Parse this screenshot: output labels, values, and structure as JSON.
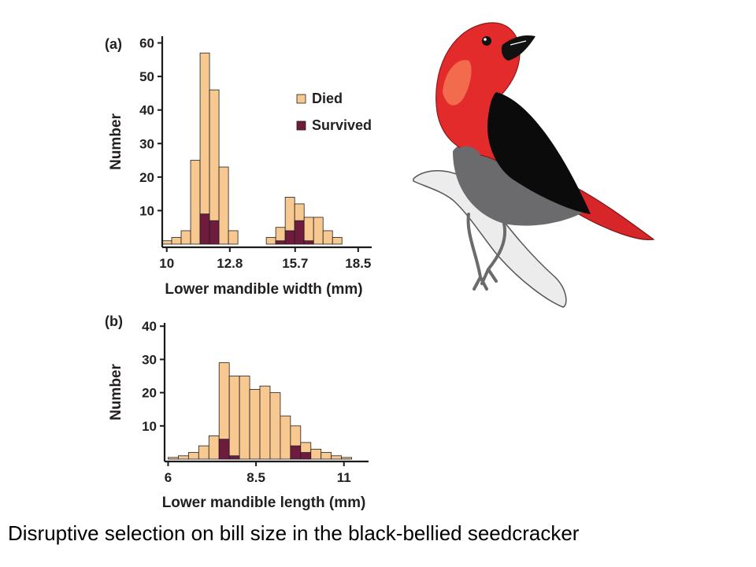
{
  "caption": "Disruptive selection on bill size in the black-bellied seedcracker",
  "colors": {
    "died": "#f7c990",
    "survived": "#6e1b3d",
    "axis": "#1a1a1a"
  },
  "legend": {
    "died": "Died",
    "survived": "Survived"
  },
  "bird": {
    "icon": "seedcracker-bird-illustration"
  },
  "chart_data": [
    {
      "type": "bar",
      "panel_label": "(a)",
      "ylabel": "Number",
      "xlabel": "Lower mandible width (mm)",
      "xticks": [
        10,
        12.8,
        15.7,
        18.5
      ],
      "xtick_labels": [
        "10",
        "12.8",
        "15.7",
        "18.5"
      ],
      "yticks": [
        10,
        20,
        30,
        40,
        50,
        60
      ],
      "ylim": [
        0,
        62
      ],
      "xlim": [
        9.8,
        19.1
      ],
      "bin_width": 0.42,
      "legend_position": "right",
      "bin_starts": [
        9.8,
        10.22,
        10.64,
        11.06,
        11.48,
        11.9,
        12.32,
        12.74,
        13.16,
        14.42,
        14.84,
        15.26,
        15.68,
        16.1,
        16.52,
        16.94,
        17.36
      ],
      "died": [
        1,
        2,
        4,
        25,
        57,
        46,
        23,
        4,
        0,
        2,
        5,
        14,
        12,
        8,
        8,
        4,
        2
      ],
      "survived": [
        0,
        0,
        0,
        0,
        9,
        7,
        0,
        0,
        0,
        0,
        1,
        4,
        7,
        1,
        0,
        0,
        0
      ]
    },
    {
      "type": "bar",
      "panel_label": "(b)",
      "ylabel": "Number",
      "xlabel": "Lower mandible length (mm)",
      "xticks": [
        6,
        8.5,
        11
      ],
      "xtick_labels": [
        "6",
        "8.5",
        "11"
      ],
      "yticks": [
        10,
        20,
        30,
        40
      ],
      "ylim": [
        0,
        41
      ],
      "xlim": [
        5.9,
        11.7
      ],
      "bin_width": 0.29,
      "bin_starts": [
        6.0,
        6.29,
        6.58,
        6.87,
        7.16,
        7.45,
        7.74,
        8.03,
        8.32,
        8.61,
        8.9,
        9.19,
        9.48,
        9.77,
        10.06,
        10.35,
        10.64,
        10.93
      ],
      "died": [
        0.5,
        1,
        2,
        4,
        7,
        29,
        25,
        25,
        21,
        22,
        20,
        13,
        10,
        5,
        3,
        2,
        1,
        0.5
      ],
      "survived": [
        0,
        0,
        0,
        0,
        0,
        6,
        1,
        0,
        0,
        0,
        0,
        0,
        4,
        2,
        0,
        0,
        0,
        0
      ]
    }
  ]
}
